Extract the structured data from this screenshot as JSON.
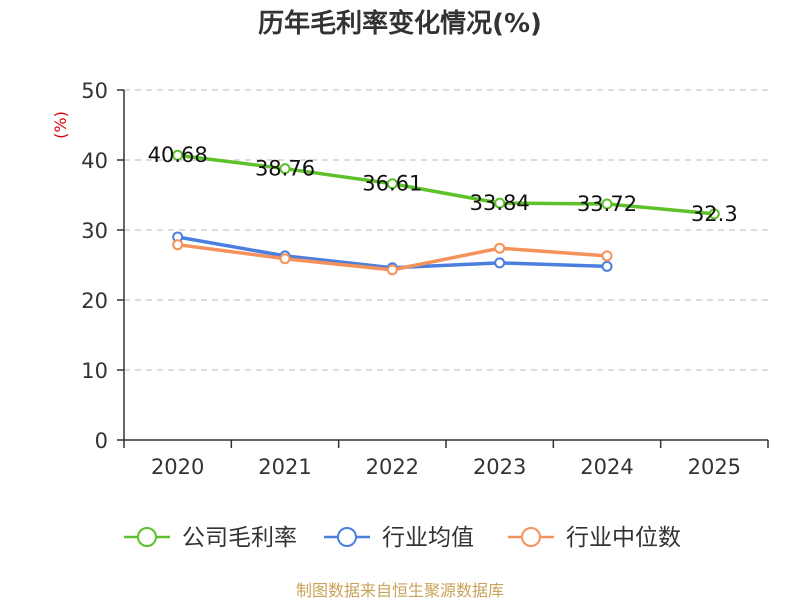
{
  "chart_data": {
    "type": "line",
    "title": "历年毛利率变化情况(%)",
    "xlabel": "",
    "ylabel": "(%)",
    "ylim": [
      0,
      50
    ],
    "yticks": [
      0,
      10,
      20,
      30,
      40,
      50
    ],
    "categories": [
      "2020",
      "2021",
      "2022",
      "2023",
      "2024",
      "2025"
    ],
    "grid": true,
    "legend_position": "bottom",
    "series": [
      {
        "name": "公司毛利率",
        "color": "#5cc12a",
        "show_labels": true,
        "values": [
          40.68,
          38.76,
          36.61,
          33.84,
          33.72,
          32.3
        ]
      },
      {
        "name": "行业均值",
        "color": "#4a7fe0",
        "show_labels": false,
        "values": [
          29.0,
          26.3,
          24.6,
          25.3,
          24.8,
          null
        ]
      },
      {
        "name": "行业中位数",
        "color": "#f5915a",
        "show_labels": false,
        "values": [
          27.9,
          25.9,
          24.3,
          27.4,
          26.3,
          null
        ]
      }
    ],
    "ylabel_color": "#dd0000"
  },
  "source": {
    "text": "制图数据来自恒生聚源数据库",
    "color": "#c8a35a"
  }
}
